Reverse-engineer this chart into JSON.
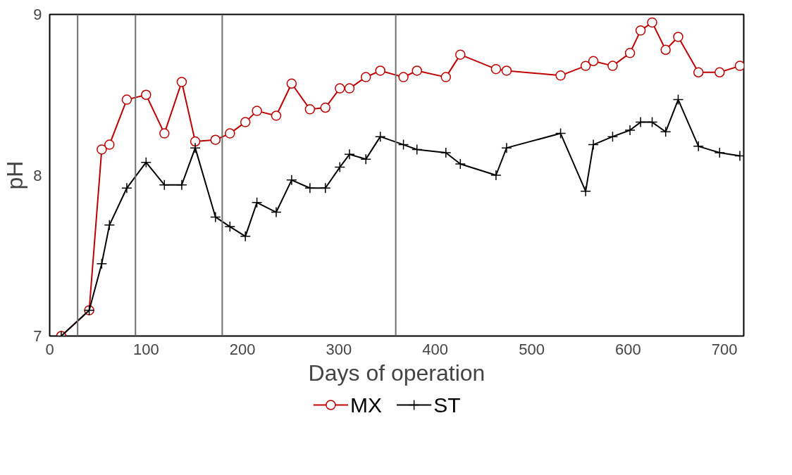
{
  "chart_data": {
    "type": "line",
    "xlabel": "Days of operation",
    "ylabel": "pH",
    "xlim": [
      0,
      720
    ],
    "xticks": [
      0,
      100,
      200,
      300,
      400,
      500,
      600,
      700
    ],
    "ylim": [
      7,
      9
    ],
    "yticks": [
      7,
      8,
      9
    ],
    "grid": false,
    "legend": "bottom",
    "x": [
      12,
      41,
      54,
      62,
      80,
      100,
      119,
      137,
      151,
      172,
      187,
      203,
      215,
      235,
      251,
      270,
      286,
      301,
      311,
      328,
      343,
      367,
      381,
      411,
      426,
      463,
      474,
      530,
      556,
      564,
      584,
      602,
      613,
      625,
      639,
      652,
      673,
      695,
      716
    ],
    "series": [
      {
        "name": "MX",
        "color": "#c00000",
        "marker": "circle",
        "values": [
          7.0,
          7.16,
          8.16,
          8.19,
          8.47,
          8.5,
          8.26,
          8.58,
          8.21,
          8.22,
          8.26,
          8.33,
          8.4,
          8.37,
          8.57,
          8.41,
          8.42,
          8.54,
          8.54,
          8.61,
          8.65,
          8.61,
          8.65,
          8.61,
          8.75,
          8.66,
          8.65,
          8.62,
          8.68,
          8.71,
          8.68,
          8.76,
          8.9,
          8.95,
          8.78,
          8.86,
          8.64,
          8.64,
          8.68
        ]
      },
      {
        "name": "ST",
        "color": "#000000",
        "marker": "cross",
        "values": [
          7.0,
          7.16,
          7.45,
          7.69,
          7.92,
          8.08,
          7.94,
          7.94,
          8.17,
          7.74,
          7.68,
          7.62,
          7.83,
          7.77,
          7.97,
          7.92,
          7.92,
          8.05,
          8.13,
          8.1,
          8.24,
          8.19,
          8.16,
          8.14,
          8.07,
          8.0,
          8.17,
          8.26,
          7.9,
          8.19,
          8.24,
          8.28,
          8.33,
          8.33,
          8.27,
          8.47,
          8.18,
          8.14,
          8.12
        ]
      }
    ],
    "ref_lines": [
      {
        "axis": "x",
        "value": 29,
        "color": "#707070"
      },
      {
        "axis": "x",
        "value": 89,
        "color": "#707070"
      },
      {
        "axis": "x",
        "value": 179,
        "color": "#707070"
      },
      {
        "axis": "x",
        "value": 359,
        "color": "#707070"
      }
    ]
  }
}
